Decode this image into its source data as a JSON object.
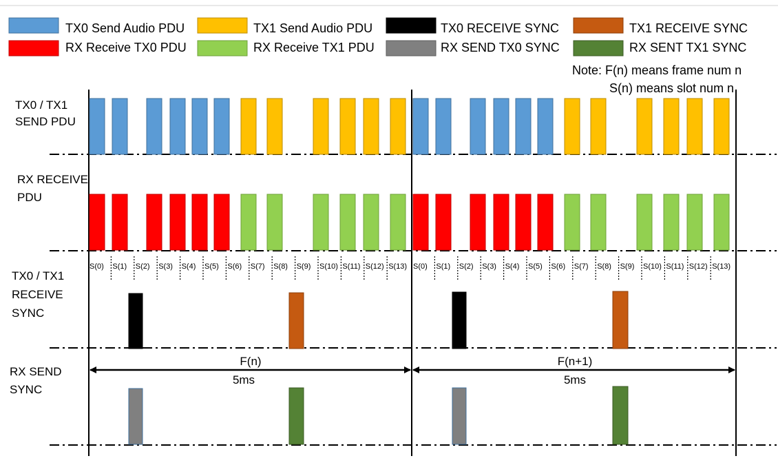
{
  "colors": {
    "tx0_send": "#5B9BD5",
    "tx1_send": "#FFC000",
    "tx0_recv_sync": "#000000",
    "tx1_recv_sync": "#C55A11",
    "rx_recv_tx0": "#FF0000",
    "rx_recv_tx1": "#92D050",
    "rx_send_tx0": "#808080",
    "rx_sent_tx1": "#548235"
  },
  "legend": [
    {
      "key": "tx0_send",
      "label": "TX0 Send Audio PDU"
    },
    {
      "key": "tx1_send",
      "label": "TX1 Send Audio PDU"
    },
    {
      "key": "tx0_recv_sync",
      "label": "TX0 RECEIVE SYNC"
    },
    {
      "key": "tx1_recv_sync",
      "label": "TX1 RECEIVE SYNC"
    },
    {
      "key": "rx_recv_tx0",
      "label": "RX Receive TX0 PDU"
    },
    {
      "key": "rx_recv_tx1",
      "label": "RX Receive TX1 PDU"
    },
    {
      "key": "rx_send_tx0",
      "label": "RX SEND TX0 SYNC"
    },
    {
      "key": "rx_sent_tx1",
      "label": "RX SENT TX1 SYNC"
    }
  ],
  "note": {
    "line1": "Note: F(n) means frame num n",
    "line2": "S(n) means slot num n"
  },
  "rows": {
    "send_pdu": [
      "TX0 / TX1",
      "SEND PDU"
    ],
    "receive_pdu": [
      "RX RECEIVE",
      "PDU"
    ],
    "receive_sync": [
      "TX0 / TX1",
      "RECEIVE",
      "SYNC"
    ],
    "send_sync": [
      "RX SEND",
      "SYNC"
    ]
  },
  "slots": [
    "S(0)",
    "S(1)",
    "S(2)",
    "S(3)",
    "S(4)",
    "S(5)",
    "S(6)",
    "S(7)",
    "S(8)",
    "S(9)",
    "S(10)",
    "S(11)",
    "S(12)",
    "S(13)"
  ],
  "frames": [
    {
      "label": "F(n)",
      "duration": "5ms"
    },
    {
      "label": "F(n+1)",
      "duration": "5ms"
    }
  ]
}
